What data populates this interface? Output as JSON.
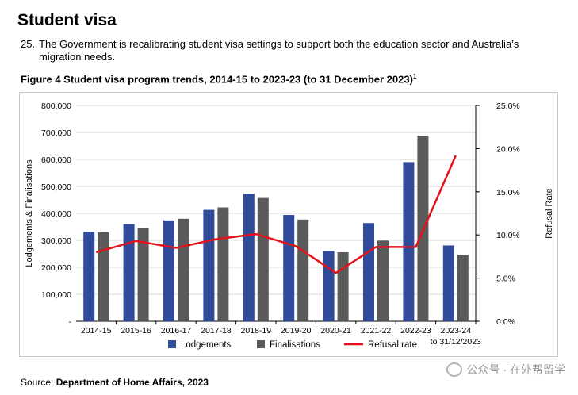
{
  "page": {
    "heading": "Student visa",
    "para_number": "25.",
    "para_text": "The Government is recalibrating student visa settings to support both the education sector and Australia’s migration needs.",
    "figure_title": "Figure 4 Student visa program trends, 2014-15 to 2023-23 (to 31 December 2023)",
    "figure_footnote": "1",
    "source_label": "Source:",
    "source_text": "Department of Home Affairs, 2023",
    "watermark": "公众号 · 在外帮留学"
  },
  "colors": {
    "lodgements": "#2f4b9a",
    "finalisations": "#5a5a5a",
    "refusal": "#e8111a",
    "grid": "#d9d9d9",
    "frame": "#c8c8c8"
  },
  "chart_data": {
    "type": "bar",
    "categories": [
      "2014-15",
      "2015-16",
      "2016-17",
      "2017-18",
      "2018-19",
      "2019-20",
      "2020-21",
      "2021-22",
      "2022-23",
      "2023-24"
    ],
    "category_sublabels": [
      "",
      "",
      "",
      "",
      "",
      "",
      "",
      "",
      "",
      "to 31/12/2023"
    ],
    "series": [
      {
        "name": "Lodgements",
        "type": "bar",
        "axis": "left",
        "values": [
          332000,
          360000,
          374000,
          413000,
          473000,
          394000,
          261000,
          364000,
          590000,
          281000
        ]
      },
      {
        "name": "Finalisations",
        "type": "bar",
        "axis": "left",
        "values": [
          330000,
          345000,
          380000,
          422000,
          457000,
          377000,
          256000,
          299000,
          688000,
          245000
        ]
      },
      {
        "name": "Refusal rate",
        "type": "line",
        "axis": "right",
        "values": [
          8.0,
          9.3,
          8.5,
          9.5,
          10.1,
          8.7,
          5.6,
          8.6,
          8.6,
          19.2
        ]
      }
    ],
    "ylabel": "Lodgements & Finalisations",
    "y2label": "Refusal Rate",
    "ylim": [
      0,
      800000
    ],
    "y2lim": [
      0,
      25
    ],
    "yticks": [
      "-",
      "100,000",
      "200,000",
      "300,000",
      "400,000",
      "500,000",
      "600,000",
      "700,000",
      "800,000"
    ],
    "y2ticks": [
      "0.0%",
      "5.0%",
      "10.0%",
      "15.0%",
      "20.0%",
      "25.0%"
    ],
    "grid": true,
    "legend_position": "bottom"
  }
}
